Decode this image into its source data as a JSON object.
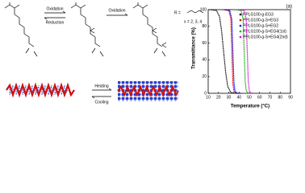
{
  "scheme": {
    "arrow1_top": "Oxidation",
    "arrow1_bottom": "Reduction",
    "arrow2_top": "Oxidation",
    "r_def": "R =",
    "x_def": "x = 2, 3, 4",
    "heating": "Heating",
    "cooling": "Cooling"
  },
  "chart_data": {
    "type": "line",
    "annotation": "(a)",
    "x_label": "Temperature (°C)",
    "y_label": "Transmittance (%)",
    "xlim": [
      10,
      90
    ],
    "xticks": [
      10,
      20,
      30,
      40,
      50,
      60,
      70,
      80,
      90
    ],
    "ylim": [
      0,
      100
    ],
    "yticks": [
      0,
      20,
      40,
      60,
      80,
      100
    ],
    "series": [
      {
        "name": "PPLG100-g-EG3",
        "color": "#000000",
        "x": [
          12,
          18,
          21,
          23,
          25,
          27,
          29,
          32,
          40
        ],
        "values": [
          100,
          99,
          92,
          75,
          50,
          25,
          8,
          1,
          0
        ]
      },
      {
        "name": "PPLG100-g-S+EG3",
        "color": "#e00000",
        "x": [
          24,
          30,
          32,
          33,
          34,
          35,
          37,
          40
        ],
        "values": [
          100,
          99,
          90,
          50,
          12,
          3,
          0,
          0
        ]
      },
      {
        "name": "PPLG100-g-S+EG2",
        "color": "#0000e0",
        "x": [
          26,
          31,
          33,
          34,
          35,
          36,
          38,
          42
        ],
        "values": [
          100,
          99,
          88,
          50,
          14,
          3,
          0,
          0
        ]
      },
      {
        "name": "PPLG100-g-S+EG4(1st)",
        "color": "#00b000",
        "x": [
          36,
          42,
          44,
          45,
          46,
          47,
          49,
          52
        ],
        "values": [
          100,
          99,
          88,
          50,
          14,
          3,
          0,
          0
        ]
      },
      {
        "name": "PPLG100-g-S+EG4(2nd)",
        "color": "#e000e0",
        "x": [
          38,
          45,
          47,
          48,
          49,
          50,
          52,
          55
        ],
        "values": [
          100,
          99,
          88,
          50,
          14,
          3,
          0,
          0
        ]
      }
    ]
  }
}
